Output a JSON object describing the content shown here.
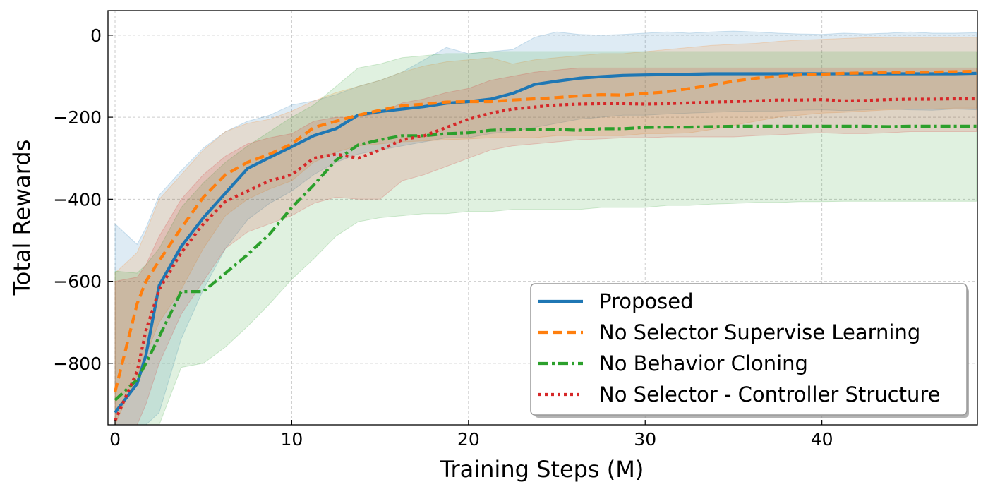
{
  "chart_data": {
    "type": "line",
    "title": "",
    "xlabel": "Training Steps (M)",
    "ylabel": "Total Rewards",
    "xlim": [
      -0.4,
      48.8
    ],
    "ylim": [
      -950,
      60
    ],
    "xticks": [
      0,
      10,
      20,
      30,
      40
    ],
    "yticks": [
      0,
      -200,
      -400,
      -600,
      -800
    ],
    "xtick_labels": [
      "0",
      "10",
      "20",
      "30",
      "40"
    ],
    "ytick_labels": [
      "0",
      "−200",
      "−400",
      "−600",
      "−800"
    ],
    "grid": true,
    "legend_position": "lower-right",
    "x": [
      0,
      1.25,
      1.75,
      2.5,
      3.75,
      5,
      6.25,
      7.5,
      8.75,
      10,
      11.25,
      12.5,
      13.75,
      15,
      16.25,
      17.5,
      18.75,
      20,
      21.25,
      22.5,
      23.75,
      25,
      26.25,
      27.5,
      28.75,
      30,
      31.25,
      32.5,
      33.75,
      35,
      36.25,
      37.5,
      38.75,
      40,
      41.25,
      42.5,
      43.75,
      45,
      46.25,
      47.5,
      48.75
    ],
    "series": [
      {
        "name": "Proposed",
        "color": "#1f77b4",
        "style": "solid",
        "values": [
          -920,
          -850,
          -780,
          -610,
          -515,
          -445,
          -385,
          -325,
          -298,
          -272,
          -245,
          -228,
          -195,
          -186,
          -180,
          -174,
          -166,
          -162,
          -156,
          -142,
          -120,
          -112,
          -105,
          -101,
          -98,
          -97,
          -96,
          -95,
          -94,
          -94,
          -94,
          -94,
          -94,
          -94,
          -94,
          -94,
          -94,
          -94,
          -94,
          -94,
          -93
        ],
        "upper": [
          -460,
          -510,
          -470,
          -390,
          -330,
          -275,
          -235,
          -210,
          -195,
          -170,
          -160,
          -145,
          -125,
          -110,
          -90,
          -60,
          -30,
          -45,
          -40,
          -35,
          -5,
          8,
          2,
          0,
          2,
          5,
          8,
          5,
          8,
          10,
          8,
          5,
          3,
          2,
          5,
          3,
          5,
          8,
          5,
          5,
          6
        ],
        "lower": [
          -950,
          -950,
          -950,
          -920,
          -740,
          -620,
          -520,
          -450,
          -410,
          -380,
          -340,
          -310,
          -290,
          -280,
          -270,
          -260,
          -250,
          -250,
          -240,
          -235,
          -225,
          -215,
          -205,
          -200,
          -195,
          -195,
          -192,
          -190,
          -188,
          -186,
          -185,
          -185,
          -183,
          -182,
          -184,
          -182,
          -180,
          -182,
          -183,
          -180,
          -182
        ]
      },
      {
        "name": "No Selector Supervise Learning",
        "color": "#ff7f0e",
        "style": "dashed",
        "values": [
          -870,
          -655,
          -600,
          -550,
          -470,
          -395,
          -340,
          -310,
          -290,
          -265,
          -225,
          -210,
          -195,
          -183,
          -172,
          -168,
          -163,
          -162,
          -162,
          -158,
          -155,
          -152,
          -148,
          -145,
          -146,
          -142,
          -138,
          -130,
          -122,
          -112,
          -105,
          -100,
          -97,
          -95,
          -93,
          -92,
          -91,
          -91,
          -90,
          -89,
          -88
        ],
        "upper": [
          -580,
          -530,
          -480,
          -400,
          -340,
          -280,
          -235,
          -215,
          -205,
          -185,
          -160,
          -140,
          -125,
          -110,
          -90,
          -75,
          -65,
          -60,
          -55,
          -70,
          -60,
          -55,
          -50,
          -45,
          -45,
          -40,
          -35,
          -30,
          -25,
          -22,
          -20,
          -15,
          -12,
          -10,
          -8,
          -6,
          -5,
          -5,
          -5,
          -5,
          -5
        ],
        "lower": [
          -950,
          -830,
          -780,
          -700,
          -620,
          -520,
          -440,
          -400,
          -375,
          -355,
          -310,
          -285,
          -270,
          -265,
          -260,
          -258,
          -255,
          -253,
          -250,
          -250,
          -250,
          -245,
          -245,
          -245,
          -245,
          -240,
          -240,
          -238,
          -230,
          -220,
          -210,
          -200,
          -195,
          -190,
          -188,
          -185,
          -182,
          -180,
          -180,
          -178,
          -178
        ]
      },
      {
        "name": "No Behavior Cloning",
        "color": "#2ca02c",
        "style": "dashdot",
        "values": [
          -890,
          -840,
          -800,
          -735,
          -625,
          -625,
          -580,
          -535,
          -485,
          -420,
          -365,
          -305,
          -268,
          -255,
          -245,
          -245,
          -240,
          -238,
          -232,
          -230,
          -230,
          -230,
          -232,
          -228,
          -228,
          -225,
          -224,
          -224,
          -223,
          -222,
          -222,
          -222,
          -222,
          -222,
          -222,
          -222,
          -223,
          -222,
          -222,
          -222,
          -222
        ],
        "upper": [
          -575,
          -580,
          -560,
          -520,
          -420,
          -360,
          -310,
          -270,
          -235,
          -200,
          -170,
          -125,
          -80,
          -70,
          -55,
          -50,
          -45,
          -45,
          -40,
          -40,
          -40,
          -40,
          -40,
          -40,
          -40,
          -40,
          -40,
          -40,
          -40,
          -40,
          -40,
          -40,
          -40,
          -40,
          -40,
          -40,
          -40,
          -40,
          -40,
          -40,
          -40
        ],
        "lower": [
          -950,
          -950,
          -950,
          -950,
          -810,
          -800,
          -760,
          -710,
          -655,
          -595,
          -545,
          -490,
          -455,
          -445,
          -440,
          -435,
          -435,
          -430,
          -430,
          -425,
          -425,
          -425,
          -425,
          -420,
          -420,
          -420,
          -415,
          -415,
          -412,
          -410,
          -408,
          -408,
          -406,
          -406,
          -405,
          -405,
          -405,
          -405,
          -405,
          -405,
          -405
        ]
      },
      {
        "name": "No Selector - Controller Structure",
        "color": "#d62728",
        "style": "dotted",
        "values": [
          -940,
          -820,
          -720,
          -620,
          -530,
          -460,
          -405,
          -380,
          -355,
          -340,
          -300,
          -290,
          -300,
          -280,
          -255,
          -245,
          -225,
          -205,
          -190,
          -180,
          -175,
          -170,
          -168,
          -167,
          -167,
          -168,
          -167,
          -165,
          -163,
          -162,
          -160,
          -158,
          -158,
          -157,
          -160,
          -159,
          -157,
          -156,
          -156,
          -155,
          -155
        ],
        "upper": [
          -600,
          -590,
          -560,
          -490,
          -400,
          -340,
          -295,
          -265,
          -250,
          -240,
          -210,
          -200,
          -200,
          -190,
          -165,
          -155,
          -140,
          -130,
          -110,
          -100,
          -90,
          -85,
          -80,
          -80,
          -80,
          -80,
          -80,
          -80,
          -80,
          -80,
          -80,
          -80,
          -80,
          -80,
          -80,
          -80,
          -80,
          -80,
          -80,
          -80,
          -80
        ],
        "lower": [
          -950,
          -950,
          -900,
          -800,
          -680,
          -600,
          -520,
          -480,
          -460,
          -440,
          -410,
          -395,
          -400,
          -400,
          -355,
          -340,
          -320,
          -300,
          -280,
          -270,
          -265,
          -260,
          -255,
          -253,
          -250,
          -250,
          -248,
          -248,
          -248,
          -248,
          -245,
          -243,
          -240,
          -238,
          -240,
          -240,
          -238,
          -235,
          -235,
          -235,
          -235
        ]
      }
    ]
  }
}
